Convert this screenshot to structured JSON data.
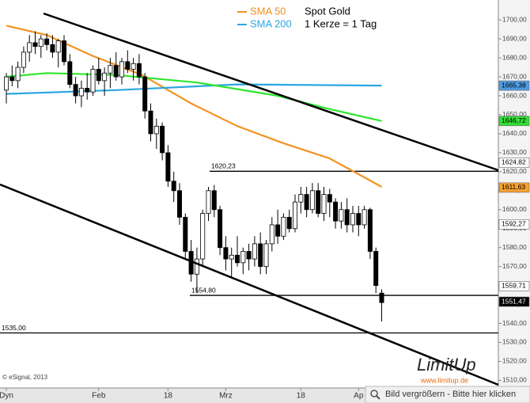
{
  "chart_data": {
    "type": "candlestick",
    "title": "Spot Gold",
    "subtitle": "1 Kerze = 1 Tag",
    "categories": [
      "Dyn",
      null,
      null,
      null,
      null,
      null,
      null,
      null,
      null,
      null,
      null,
      null,
      null,
      null,
      null,
      null,
      "Feb",
      null,
      null,
      null,
      null,
      null,
      null,
      null,
      null,
      null,
      null,
      null,
      "18",
      null,
      null,
      null,
      null,
      null,
      null,
      null,
      null,
      null,
      "Mrz",
      null,
      null,
      null,
      null,
      null,
      null,
      null,
      null,
      null,
      null,
      null,
      null,
      "18",
      null,
      null,
      null,
      null,
      null,
      null,
      null,
      null,
      null,
      "Ap",
      null,
      null,
      null,
      null
    ],
    "open": [
      1663,
      1670,
      1668,
      1675,
      1683,
      1688,
      1686,
      1690,
      1687,
      1683,
      1689,
      1678,
      1666,
      1660,
      1664,
      1662,
      1674,
      1668,
      1672,
      1676,
      1670,
      1678,
      1674,
      1677,
      1670,
      1652,
      1640,
      1644,
      1630,
      1615,
      1610,
      1596,
      1578,
      1566,
      1574,
      1598,
      1610,
      1600,
      1580,
      1574,
      1576,
      1572,
      1578,
      1574,
      1582,
      1570,
      1582,
      1592,
      1586,
      1596,
      1590,
      1604,
      1608,
      1600,
      1610,
      1598,
      1608,
      1604,
      1594,
      1600,
      1592,
      1598,
      1592,
      1600,
      1578,
      1556
    ],
    "high": [
      1672,
      1676,
      1678,
      1686,
      1692,
      1694,
      1692,
      1693,
      1692,
      1690,
      1692,
      1682,
      1670,
      1668,
      1672,
      1676,
      1680,
      1675,
      1680,
      1683,
      1680,
      1684,
      1680,
      1682,
      1672,
      1656,
      1648,
      1646,
      1634,
      1620,
      1614,
      1598,
      1584,
      1580,
      1600,
      1612,
      1613,
      1602,
      1586,
      1580,
      1586,
      1580,
      1582,
      1586,
      1588,
      1584,
      1596,
      1600,
      1598,
      1600,
      1608,
      1612,
      1612,
      1614,
      1614,
      1612,
      1611,
      1606,
      1604,
      1606,
      1602,
      1602,
      1602,
      1601,
      1580,
      1558
    ],
    "low": [
      1656,
      1665,
      1664,
      1672,
      1678,
      1682,
      1680,
      1684,
      1680,
      1675,
      1676,
      1664,
      1656,
      1654,
      1658,
      1660,
      1666,
      1660,
      1664,
      1668,
      1666,
      1672,
      1668,
      1666,
      1648,
      1636,
      1632,
      1626,
      1612,
      1604,
      1592,
      1574,
      1562,
      1556,
      1570,
      1594,
      1596,
      1576,
      1568,
      1564,
      1570,
      1566,
      1568,
      1570,
      1566,
      1566,
      1578,
      1582,
      1584,
      1588,
      1588,
      1598,
      1596,
      1598,
      1596,
      1594,
      1596,
      1590,
      1590,
      1588,
      1588,
      1586,
      1590,
      1574,
      1556,
      1541
    ],
    "close": [
      1670,
      1668,
      1675,
      1683,
      1688,
      1686,
      1690,
      1687,
      1683,
      1689,
      1678,
      1666,
      1660,
      1664,
      1662,
      1674,
      1668,
      1672,
      1676,
      1670,
      1678,
      1674,
      1677,
      1670,
      1652,
      1640,
      1644,
      1630,
      1615,
      1610,
      1596,
      1578,
      1566,
      1574,
      1598,
      1610,
      1600,
      1580,
      1574,
      1576,
      1572,
      1578,
      1574,
      1582,
      1570,
      1582,
      1592,
      1586,
      1596,
      1590,
      1604,
      1608,
      1600,
      1610,
      1598,
      1608,
      1604,
      1594,
      1600,
      1592,
      1598,
      1592,
      1600,
      1578,
      1560,
      1551
    ],
    "up_color": "#ffffff",
    "down_color": "#000000",
    "lines": [
      {
        "name": "SMA 50",
        "color": "#f39220",
        "x": [
          0,
          7,
          15,
          23.5,
          32,
          40,
          48,
          56,
          65
        ],
        "values": [
          1697,
          1692,
          1681,
          1671,
          1656,
          1644,
          1635,
          1627,
          1612
        ]
      },
      {
        "name": "SMA 200",
        "color": "#2aa7e0",
        "x": [
          0,
          19,
          40,
          65
        ],
        "values": [
          1661,
          1663,
          1666,
          1665.38
        ]
      },
      {
        "color": "#2ee62e",
        "x": [
          0,
          7,
          19,
          33,
          47,
          56,
          65
        ],
        "values": [
          1670,
          1672,
          1671,
          1667,
          1660,
          1653,
          1646.72
        ]
      }
    ],
    "levels": [
      {
        "value": 1620.23,
        "label": "1620,23"
      },
      {
        "value": 1554.8,
        "label": "1554,80"
      },
      {
        "value": 1535,
        "label": "1535,00"
      }
    ],
    "price_labels": [
      {
        "value": 1665.38,
        "label": "1665,38",
        "color": "#4d9be0"
      },
      {
        "value": 1646.72,
        "label": "1646,72",
        "color": "#33dd33"
      },
      {
        "value": 1624.82,
        "label": "1624,82",
        "color": "#ffffff"
      },
      {
        "value": 1611.63,
        "label": "1611,63",
        "color": "#f7a030"
      },
      {
        "value": 1592.27,
        "label": "1592,27",
        "color": "#ffffff"
      },
      {
        "value": 1559.71,
        "label": "1559,71",
        "color": "#ffffff"
      },
      {
        "value": 1551.47,
        "label": "1551,47",
        "color": "#000000"
      }
    ],
    "ylim": [
      1506,
      1708
    ],
    "yticks": [
      {
        "value": 1510,
        "label": "1510,00"
      },
      {
        "value": 1520,
        "label": "1520,00"
      },
      {
        "value": 1530,
        "label": "1530,00"
      },
      {
        "value": 1540,
        "label": "1540,00"
      },
      {
        "value": 1550,
        "label": "1550,00"
      },
      {
        "value": 1560,
        "label": "1560,00"
      },
      {
        "value": 1570,
        "label": "1570,00"
      },
      {
        "value": 1580,
        "label": "1580,00"
      },
      {
        "value": 1590,
        "label": "1590,00"
      },
      {
        "value": 1600,
        "label": "1600,00"
      },
      {
        "value": 1610,
        "label": "1610,00"
      },
      {
        "value": 1620,
        "label": "1620,00"
      },
      {
        "value": 1630,
        "label": "1630,00"
      },
      {
        "value": 1640,
        "label": "1640,00"
      },
      {
        "value": 1650,
        "label": "1650,00"
      },
      {
        "value": 1660,
        "label": "1660,00"
      },
      {
        "value": 1670,
        "label": "1670,00"
      },
      {
        "value": 1680,
        "label": "1680,00"
      },
      {
        "value": 1690,
        "label": "1690,00"
      },
      {
        "value": 1700,
        "label": "1700,00"
      }
    ],
    "copyright": "© eSignal, 2013",
    "logo": "LimitUp",
    "logo_url": "www.limitup.de",
    "button": "Bild vergrößern - Bitte hier klicken"
  }
}
